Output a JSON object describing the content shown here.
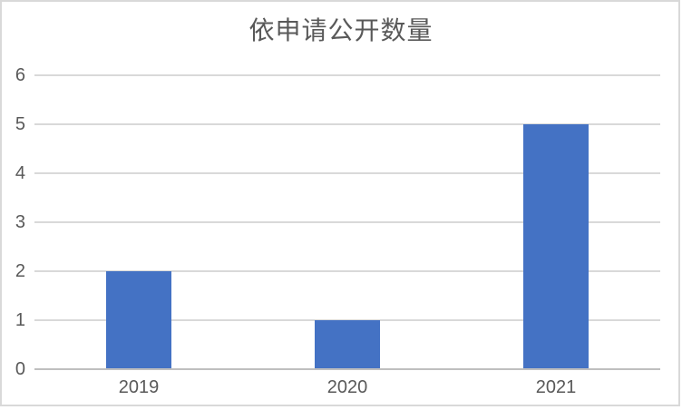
{
  "title": "依申请公开数量",
  "chart_data": {
    "type": "bar",
    "title": "依申请公开数量",
    "categories": [
      "2019",
      "2020",
      "2021"
    ],
    "values": [
      2,
      1,
      5
    ],
    "xlabel": "",
    "ylabel": "",
    "ylim": [
      0,
      6
    ],
    "yticks": [
      0,
      1,
      2,
      3,
      4,
      5,
      6
    ],
    "grid": "horizontal",
    "legend_position": "none",
    "bar_color": "#4472C4",
    "gridline_color": "#D9D9D9",
    "axis_line_color": "#BFBFBF",
    "text_color": "#595959",
    "frame_border_color": "#D9D9D9",
    "background_color": "#FFFFFF"
  }
}
